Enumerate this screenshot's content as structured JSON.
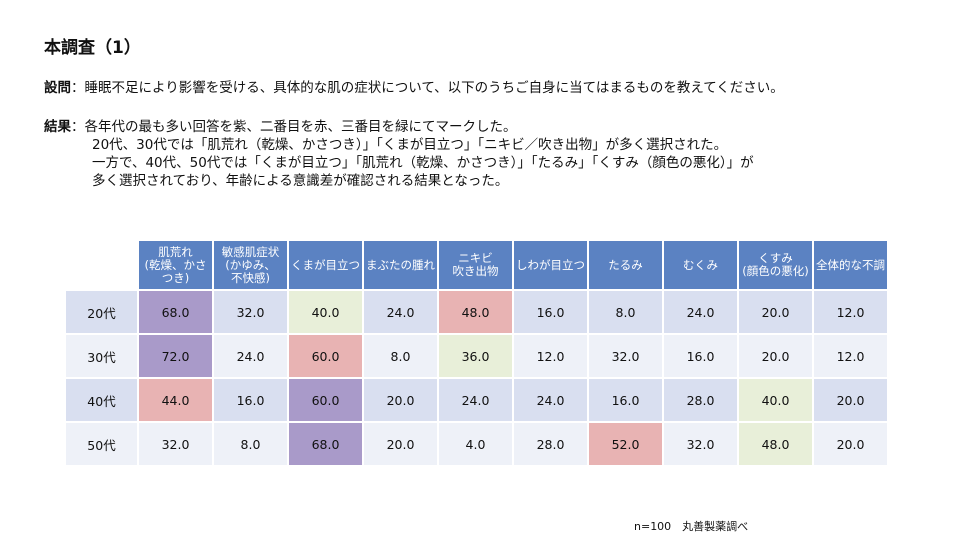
{
  "title": "本調査（1）",
  "question": {
    "label": "設問",
    "text": "：睡眠不足により影響を受ける、具体的な肌の症状について、以下のうちご自身に当てはまるものを教えてください。"
  },
  "results": {
    "label": "結果",
    "lines": [
      "：各年代の最も多い回答を紫、二番目を赤、三番目を緑にてマークした。",
      "20代、30代では「肌荒れ（乾燥、かさつき）」「くまが目立つ」「ニキビ／吹き出物」が多く選択された。",
      "一方で、40代、50代では「くまが目立つ」「肌荒れ（乾燥、かさつき）」「たるみ」「くすみ（顔色の悪化）」が",
      "多く選択されており、年齢による意識差が確認される結果となった。"
    ]
  },
  "table": {
    "headers": [
      "肌荒れ\n(乾燥、かさ\nつき)",
      "敏感肌症状\n(かゆみ、\n不快感)",
      "くまが目立つ",
      "まぶたの腫れ",
      "ニキビ\n吹き出物",
      "しわが目立つ",
      "たるみ",
      "むくみ",
      "くすみ\n(顔色の悪化)",
      "全体的な不調"
    ],
    "rows": [
      {
        "label": "20代",
        "values": [
          "68.0",
          "32.0",
          "40.0",
          "24.0",
          "48.0",
          "16.0",
          "8.0",
          "24.0",
          "20.0",
          "12.0"
        ],
        "marks": [
          "purple",
          "",
          "green",
          "",
          "red",
          "",
          "",
          "",
          "",
          ""
        ]
      },
      {
        "label": "30代",
        "values": [
          "72.0",
          "24.0",
          "60.0",
          "8.0",
          "36.0",
          "12.0",
          "32.0",
          "16.0",
          "20.0",
          "12.0"
        ],
        "marks": [
          "purple",
          "",
          "red",
          "",
          "green",
          "",
          "",
          "",
          "",
          ""
        ]
      },
      {
        "label": "40代",
        "values": [
          "44.0",
          "16.0",
          "60.0",
          "20.0",
          "24.0",
          "24.0",
          "16.0",
          "28.0",
          "40.0",
          "20.0"
        ],
        "marks": [
          "red",
          "",
          "purple",
          "",
          "",
          "",
          "",
          "",
          "green",
          ""
        ]
      },
      {
        "label": "50代",
        "values": [
          "32.0",
          "8.0",
          "68.0",
          "20.0",
          "4.0",
          "28.0",
          "52.0",
          "32.0",
          "48.0",
          "20.0"
        ],
        "marks": [
          "",
          "",
          "purple",
          "",
          "",
          "",
          "red",
          "",
          "green",
          ""
        ]
      }
    ],
    "mark_colors": {
      "purple": "#a99ac9",
      "red": "#e8b3b3",
      "green": "#e8efd9",
      "header": "#5b82c2"
    }
  },
  "note": "n=100　丸善製薬調べ"
}
